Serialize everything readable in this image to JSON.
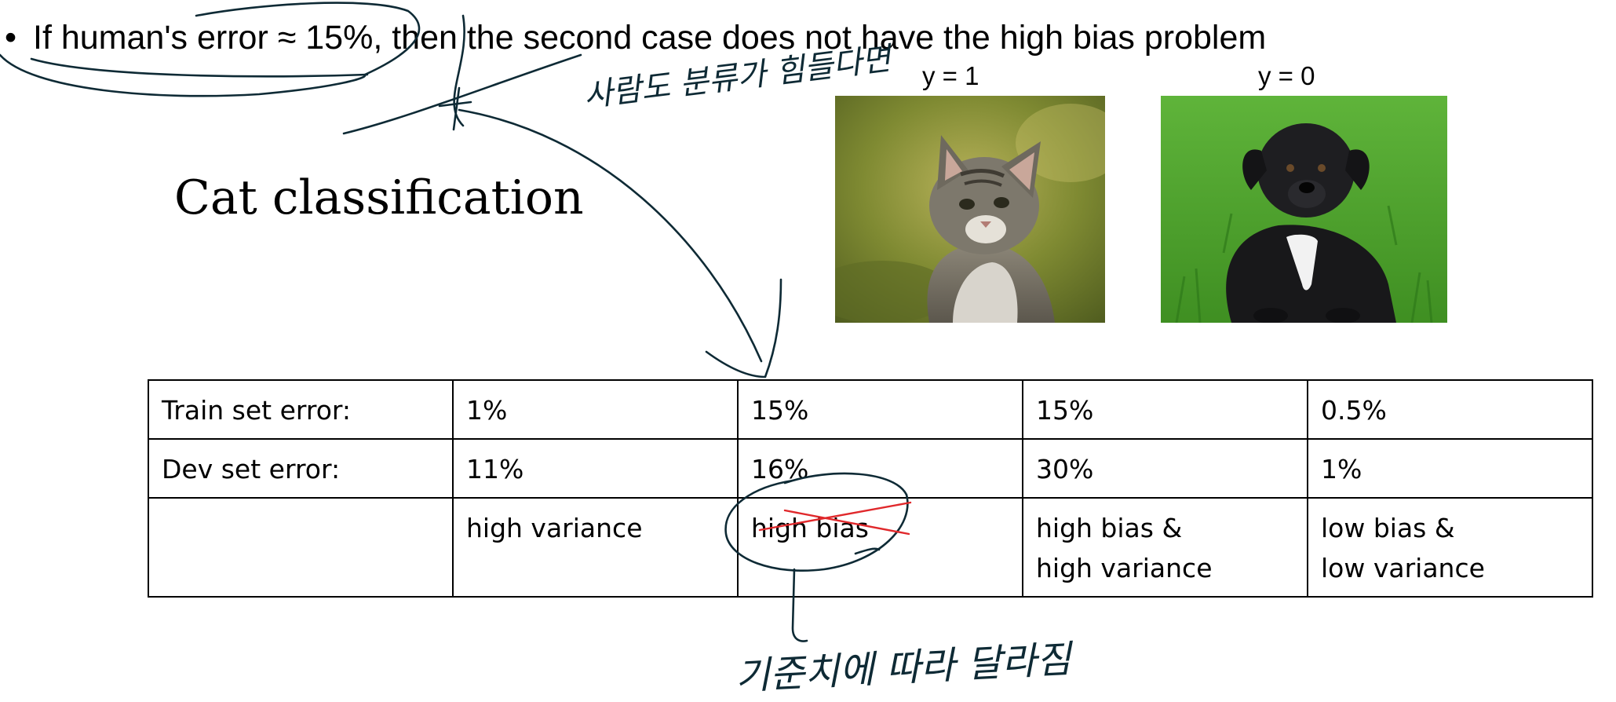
{
  "slide": {
    "bullet": "If human's error ≈ 15%, then the second case does not have the high bias problem",
    "heading": "Cat classification"
  },
  "images": [
    {
      "label": "y = 1",
      "subject": "cat"
    },
    {
      "label": "y = 0",
      "subject": "dog"
    }
  ],
  "table": {
    "rows": [
      [
        "Train set error:",
        "1%",
        "15%",
        "15%",
        "0.5%"
      ],
      [
        "Dev set error:",
        "11%",
        "16%",
        "30%",
        "1%"
      ],
      [
        "",
        "high variance",
        "high bias",
        "high bias &\nhigh variance",
        "low bias &\nlow variance"
      ]
    ]
  },
  "annotations": {
    "top_note": "사람도 분류가 힘들다면",
    "bottom_note": "기준치에 따라 달라짐"
  },
  "colors": {
    "ink": "#0e2a35",
    "strike": "#e0282b"
  }
}
